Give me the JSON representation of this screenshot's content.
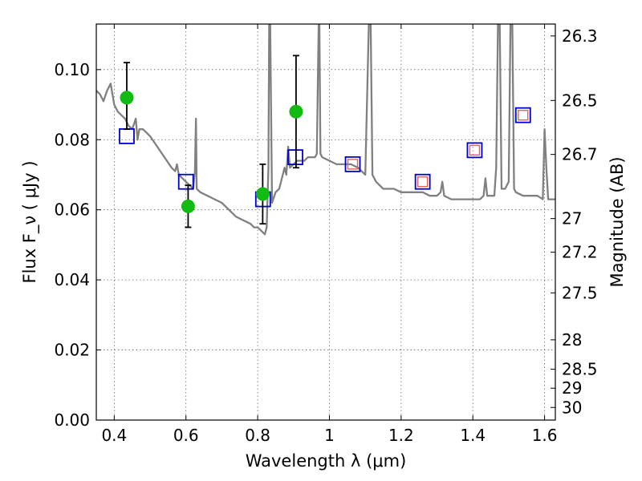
{
  "chart_data": {
    "type": "scatter",
    "xlabel": "Wavelength  λ (μm)",
    "ylabel": "Flux  F_ν  ( μJy )",
    "y2label": "Magnitude (AB)",
    "xlim": [
      0.35,
      1.63
    ],
    "ylim": [
      0.0,
      0.113
    ],
    "grid": true,
    "x_ticks": [
      0.4,
      0.6,
      0.8,
      1.0,
      1.2,
      1.4,
      1.6
    ],
    "x_tick_labels": [
      "0.4",
      "0.6",
      "0.8",
      "1",
      "1.2",
      "1.4",
      "1.6"
    ],
    "y_ticks": [
      0.0,
      0.02,
      0.04,
      0.06,
      0.08,
      0.1
    ],
    "y_tick_labels": [
      "0.00",
      "0.02",
      "0.04",
      "0.06",
      "0.08",
      "0.10"
    ],
    "y2_ticks": [
      {
        "label": "26.3",
        "flux": 0.1096
      },
      {
        "label": "26.5",
        "flux": 0.0912
      },
      {
        "label": "26.7",
        "flux": 0.0758
      },
      {
        "label": "27",
        "flux": 0.0575
      },
      {
        "label": "27.2",
        "flux": 0.0479
      },
      {
        "label": "27.5",
        "flux": 0.0363
      },
      {
        "label": "28",
        "flux": 0.0229
      },
      {
        "label": "28.5",
        "flux": 0.0145
      },
      {
        "label": "29",
        "flux": 0.0091
      },
      {
        "label": "30",
        "flux": 0.0036
      }
    ],
    "series": [
      {
        "kind": "line",
        "color": "#808080",
        "points": [
          [
            0.35,
            0.094
          ],
          [
            0.36,
            0.093
          ],
          [
            0.37,
            0.091
          ],
          [
            0.38,
            0.094
          ],
          [
            0.39,
            0.096
          ],
          [
            0.4,
            0.09
          ],
          [
            0.41,
            0.088
          ],
          [
            0.42,
            0.087
          ],
          [
            0.43,
            0.086
          ],
          [
            0.44,
            0.084
          ],
          [
            0.45,
            0.083
          ],
          [
            0.46,
            0.086
          ],
          [
            0.465,
            0.08
          ],
          [
            0.47,
            0.083
          ],
          [
            0.48,
            0.083
          ],
          [
            0.49,
            0.082
          ],
          [
            0.5,
            0.081
          ],
          [
            0.52,
            0.078
          ],
          [
            0.54,
            0.075
          ],
          [
            0.56,
            0.072
          ],
          [
            0.57,
            0.071
          ],
          [
            0.575,
            0.073
          ],
          [
            0.58,
            0.07
          ],
          [
            0.59,
            0.069
          ],
          [
            0.6,
            0.068
          ],
          [
            0.61,
            0.067
          ],
          [
            0.62,
            0.066
          ],
          [
            0.625,
            0.071
          ],
          [
            0.628,
            0.086
          ],
          [
            0.63,
            0.066
          ],
          [
            0.64,
            0.065
          ],
          [
            0.66,
            0.064
          ],
          [
            0.68,
            0.063
          ],
          [
            0.7,
            0.062
          ],
          [
            0.72,
            0.06
          ],
          [
            0.74,
            0.058
          ],
          [
            0.76,
            0.057
          ],
          [
            0.78,
            0.056
          ],
          [
            0.79,
            0.055
          ],
          [
            0.8,
            0.055
          ],
          [
            0.81,
            0.054
          ],
          [
            0.82,
            0.053
          ],
          [
            0.825,
            0.055
          ],
          [
            0.83,
            0.072
          ],
          [
            0.832,
            0.113
          ],
          [
            0.835,
            0.113
          ],
          [
            0.84,
            0.062
          ],
          [
            0.85,
            0.065
          ],
          [
            0.86,
            0.066
          ],
          [
            0.87,
            0.07
          ],
          [
            0.875,
            0.072
          ],
          [
            0.88,
            0.07
          ],
          [
            0.885,
            0.078
          ],
          [
            0.89,
            0.072
          ],
          [
            0.9,
            0.073
          ],
          [
            0.91,
            0.074
          ],
          [
            0.92,
            0.074
          ],
          [
            0.93,
            0.074
          ],
          [
            0.94,
            0.075
          ],
          [
            0.95,
            0.075
          ],
          [
            0.96,
            0.075
          ],
          [
            0.965,
            0.076
          ],
          [
            0.97,
            0.113
          ],
          [
            0.972,
            0.113
          ],
          [
            0.975,
            0.076
          ],
          [
            0.98,
            0.075
          ],
          [
            1.0,
            0.074
          ],
          [
            1.02,
            0.073
          ],
          [
            1.04,
            0.073
          ],
          [
            1.06,
            0.073
          ],
          [
            1.08,
            0.072
          ],
          [
            1.09,
            0.071
          ],
          [
            1.1,
            0.07
          ],
          [
            1.11,
            0.113
          ],
          [
            1.115,
            0.113
          ],
          [
            1.12,
            0.07
          ],
          [
            1.13,
            0.068
          ],
          [
            1.14,
            0.067
          ],
          [
            1.15,
            0.066
          ],
          [
            1.16,
            0.066
          ],
          [
            1.18,
            0.066
          ],
          [
            1.2,
            0.065
          ],
          [
            1.22,
            0.065
          ],
          [
            1.24,
            0.065
          ],
          [
            1.26,
            0.065
          ],
          [
            1.28,
            0.064
          ],
          [
            1.3,
            0.064
          ],
          [
            1.31,
            0.065
          ],
          [
            1.315,
            0.068
          ],
          [
            1.32,
            0.064
          ],
          [
            1.34,
            0.063
          ],
          [
            1.36,
            0.063
          ],
          [
            1.38,
            0.063
          ],
          [
            1.4,
            0.063
          ],
          [
            1.42,
            0.063
          ],
          [
            1.43,
            0.064
          ],
          [
            1.435,
            0.069
          ],
          [
            1.44,
            0.064
          ],
          [
            1.46,
            0.064
          ],
          [
            1.465,
            0.072
          ],
          [
            1.47,
            0.113
          ],
          [
            1.475,
            0.113
          ],
          [
            1.48,
            0.066
          ],
          [
            1.49,
            0.066
          ],
          [
            1.5,
            0.068
          ],
          [
            1.505,
            0.113
          ],
          [
            1.51,
            0.113
          ],
          [
            1.515,
            0.066
          ],
          [
            1.52,
            0.065
          ],
          [
            1.54,
            0.064
          ],
          [
            1.56,
            0.064
          ],
          [
            1.58,
            0.064
          ],
          [
            1.595,
            0.063
          ],
          [
            1.6,
            0.083
          ],
          [
            1.605,
            0.072
          ],
          [
            1.61,
            0.063
          ],
          [
            1.63,
            0.063
          ]
        ]
      },
      {
        "kind": "model-squares",
        "color": "#0000cc",
        "points": [
          [
            0.435,
            0.081
          ],
          [
            0.6,
            0.068
          ],
          [
            0.815,
            0.063
          ],
          [
            0.905,
            0.075
          ],
          [
            1.065,
            0.073
          ],
          [
            1.26,
            0.068
          ],
          [
            1.405,
            0.077
          ],
          [
            1.54,
            0.087
          ]
        ]
      },
      {
        "kind": "inner-squares",
        "color": "#e06060",
        "points": [
          [
            1.065,
            0.073
          ],
          [
            1.26,
            0.068
          ],
          [
            1.405,
            0.077
          ],
          [
            1.54,
            0.087
          ]
        ]
      },
      {
        "kind": "observed-points",
        "color": "#11bb11",
        "points": [
          {
            "x": 0.435,
            "y": 0.092,
            "lo": 0.083,
            "hi": 0.102
          },
          {
            "x": 0.606,
            "y": 0.061,
            "lo": 0.055,
            "hi": 0.067
          },
          {
            "x": 0.814,
            "y": 0.0645,
            "lo": 0.056,
            "hi": 0.073
          },
          {
            "x": 0.907,
            "y": 0.088,
            "lo": 0.072,
            "hi": 0.104
          }
        ]
      }
    ]
  }
}
